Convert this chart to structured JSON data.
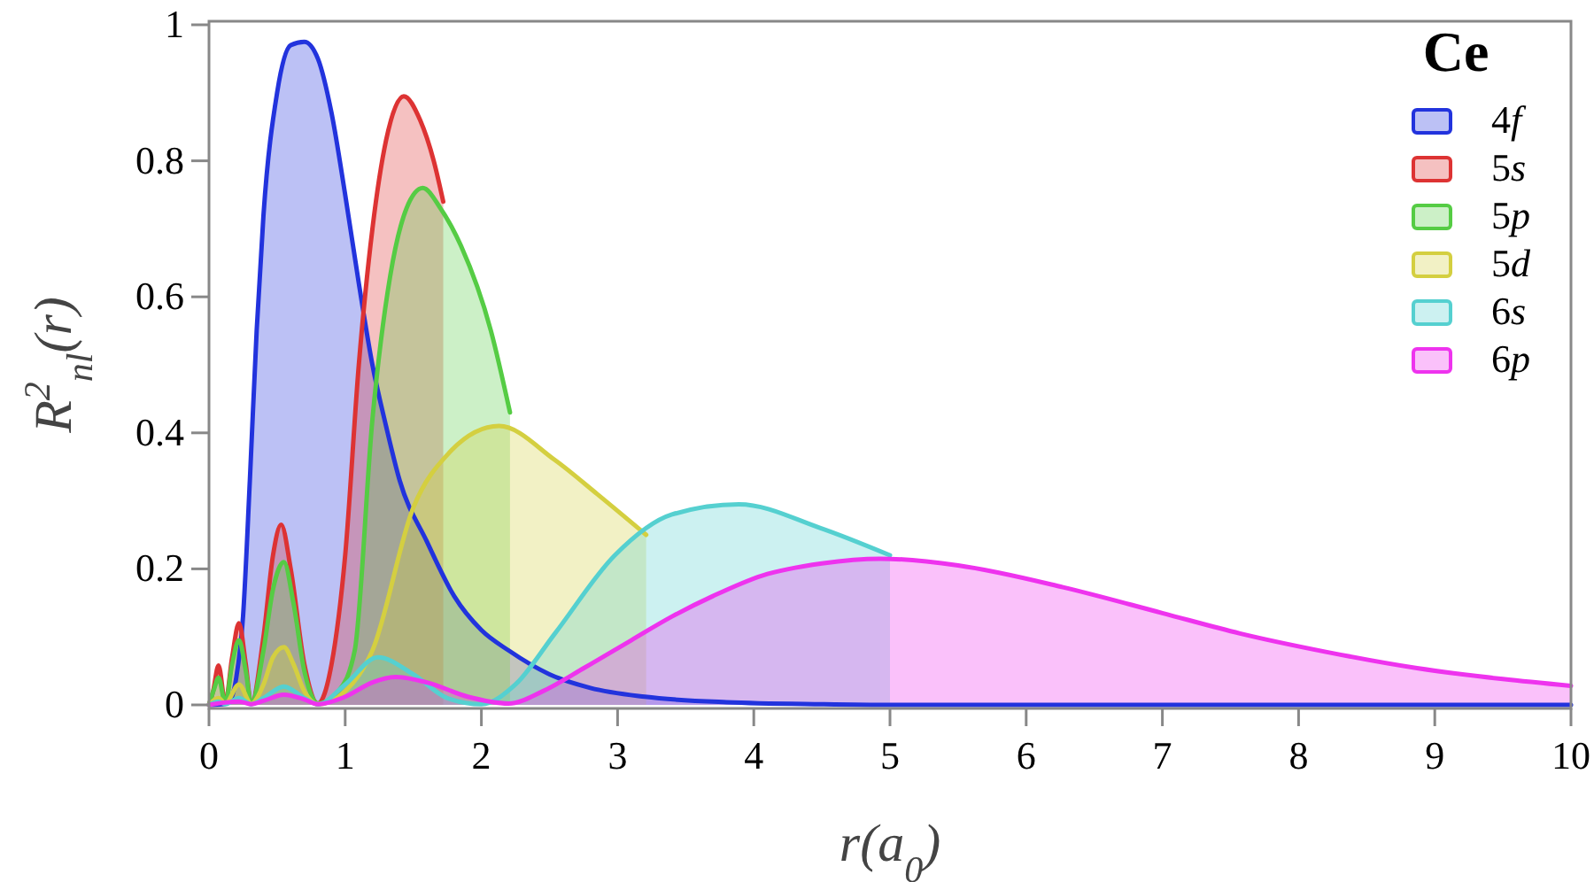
{
  "chart_data": {
    "type": "area",
    "legend_title": "Ce",
    "xlabel": "r(a$_{0}$)",
    "ylabel": "R$^{2}$$_{nl}$(r)",
    "xlim": [
      0,
      10
    ],
    "ylim": [
      0,
      1
    ],
    "xticks": [
      0,
      1,
      2,
      3,
      4,
      5,
      6,
      7,
      8,
      9,
      10
    ],
    "yticks": [
      0,
      0.2,
      0.4,
      0.6,
      0.8,
      1
    ],
    "legend": "top right",
    "grid": false,
    "series": [
      {
        "name": "4f",
        "color": "#2233dd",
        "x": [
          0,
          0.1,
          0.15,
          0.2,
          0.25,
          0.3,
          0.35,
          0.4,
          0.5,
          0.6,
          0.7,
          0.8,
          0.9,
          1.0,
          1.1,
          1.2,
          1.3,
          1.4,
          1.6,
          1.8,
          2.0,
          2.2,
          2.5,
          2.8,
          3.2,
          3.8,
          4.5,
          5,
          6,
          7,
          8,
          9,
          10
        ],
        "values": [
          0,
          0.001,
          0.005,
          0.04,
          0.13,
          0.33,
          0.55,
          0.72,
          0.9,
          0.97,
          0.975,
          0.95,
          0.87,
          0.75,
          0.62,
          0.5,
          0.41,
          0.33,
          0.24,
          0.16,
          0.11,
          0.08,
          0.045,
          0.025,
          0.012,
          0.004,
          0.001,
          0,
          0,
          0,
          0,
          0,
          0
        ]
      },
      {
        "name": "5s",
        "color": "#dd3333",
        "x": [
          0,
          0.03,
          0.07,
          0.12,
          0.17,
          0.22,
          0.27,
          0.31,
          0.4,
          0.47,
          0.53,
          0.6,
          0.7,
          0.8,
          0.9,
          1.0,
          1.1,
          1.2,
          1.3,
          1.43,
          1.55,
          1.65,
          1.72
        ],
        "values": [
          0,
          0.02,
          0.058,
          0.003,
          0.07,
          0.12,
          0.06,
          0.002,
          0.1,
          0.22,
          0.265,
          0.2,
          0.06,
          0.002,
          0.06,
          0.22,
          0.5,
          0.7,
          0.83,
          0.895,
          0.86,
          0.8,
          0.74
        ]
      },
      {
        "name": "5p",
        "color": "#55cc44",
        "x": [
          0,
          0.04,
          0.07,
          0.12,
          0.17,
          0.22,
          0.27,
          0.31,
          0.4,
          0.47,
          0.55,
          0.62,
          0.7,
          0.8,
          0.95,
          1.07,
          1.2,
          1.33,
          1.45,
          1.57,
          1.7,
          1.85,
          2.07,
          2.21
        ],
        "values": [
          0,
          0.025,
          0.04,
          0.002,
          0.06,
          0.095,
          0.05,
          0.002,
          0.08,
          0.17,
          0.21,
          0.15,
          0.05,
          0.002,
          0.02,
          0.08,
          0.42,
          0.63,
          0.73,
          0.76,
          0.73,
          0.675,
          0.55,
          0.43
        ]
      },
      {
        "name": "5d",
        "color": "#d4cf40",
        "x": [
          0,
          0.07,
          0.12,
          0.22,
          0.31,
          0.4,
          0.47,
          0.55,
          0.62,
          0.7,
          0.8,
          1.0,
          1.2,
          1.5,
          1.76,
          2.13,
          2.54,
          2.85,
          3.21
        ],
        "values": [
          0,
          0.01,
          0.002,
          0.03,
          0.002,
          0.03,
          0.07,
          0.085,
          0.06,
          0.02,
          0.001,
          0.02,
          0.08,
          0.29,
          0.37,
          0.41,
          0.36,
          0.31,
          0.25
        ]
      },
      {
        "name": "6s",
        "color": "#55d0d0",
        "x": [
          0,
          0.07,
          0.12,
          0.22,
          0.31,
          0.4,
          0.55,
          0.7,
          0.8,
          1.0,
          1.24,
          1.5,
          1.75,
          2.0,
          2.25,
          2.54,
          2.98,
          3.4,
          3.89,
          4.49,
          5.0
        ],
        "values": [
          0,
          0.005,
          0.001,
          0.01,
          0.001,
          0.01,
          0.027,
          0.01,
          0.001,
          0.03,
          0.07,
          0.045,
          0.01,
          0.001,
          0.03,
          0.105,
          0.22,
          0.28,
          0.295,
          0.26,
          0.22
        ]
      },
      {
        "name": "6p",
        "color": "#ee33ee",
        "x": [
          0,
          0.22,
          0.31,
          0.4,
          0.55,
          0.7,
          0.8,
          1.0,
          1.2,
          1.37,
          1.6,
          1.9,
          2.2,
          2.45,
          2.76,
          3.1,
          3.4,
          3.7,
          4.06,
          4.5,
          4.93,
          5.5,
          6.27,
          7.0,
          7.57,
          8.2,
          8.87,
          9.5,
          10
        ],
        "values": [
          0,
          0.005,
          0.001,
          0.006,
          0.015,
          0.008,
          0.001,
          0.012,
          0.033,
          0.041,
          0.033,
          0.012,
          0.002,
          0.02,
          0.055,
          0.095,
          0.13,
          0.16,
          0.19,
          0.208,
          0.215,
          0.205,
          0.173,
          0.135,
          0.105,
          0.078,
          0.054,
          0.038,
          0.028
        ]
      }
    ]
  }
}
